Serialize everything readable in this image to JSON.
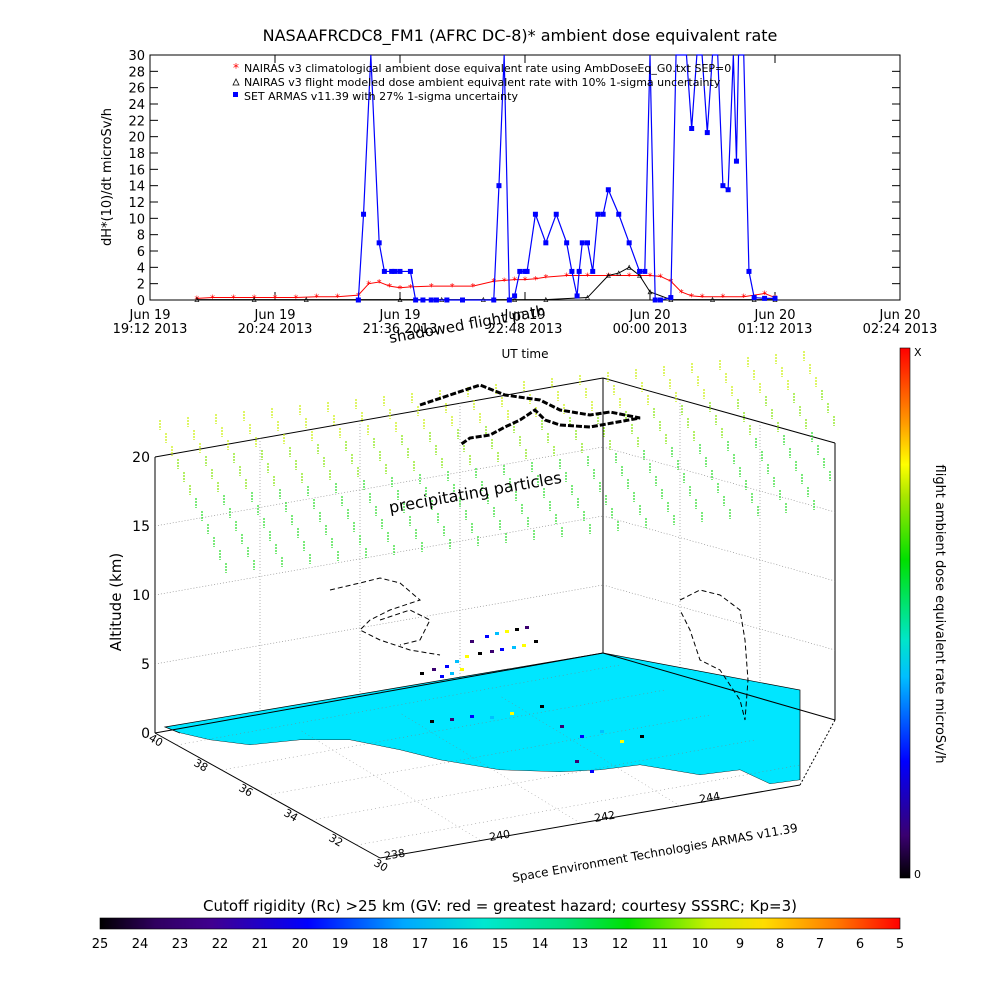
{
  "page": {
    "title": "NASAAFRCDC8_FM1 (AFRC DC-8)* ambient dose equivalent rate",
    "colorbar_title": "flight ambient dose equivalent rate microSv/h",
    "colorbar_top": "X",
    "colorbar_bottom": "0",
    "rigidity_title": "Cutoff rigidity (Rc) >25 km (GV: red = greatest hazard; courtesy SSSRC; Kp=3)",
    "rigidity_ticks": [
      "25",
      "24",
      "23",
      "22",
      "21",
      "20",
      "19",
      "18",
      "17",
      "16",
      "15",
      "14",
      "13",
      "12",
      "11",
      "10",
      "9",
      "8",
      "7",
      "6",
      "5"
    ],
    "map3d": {
      "altitude_label": "Altitude (km)",
      "altitude_ticks": [
        "0",
        "5",
        "10",
        "15",
        "20"
      ],
      "lat_ticks": [
        "40",
        "38",
        "36",
        "34",
        "32",
        "30"
      ],
      "lon_ticks": [
        "238",
        "240",
        "242",
        "244"
      ],
      "precip_label": "precipitating particles",
      "shadow_label": "shadowed flight path",
      "credit": "Space Environment Technologies ARMAS v11.39"
    },
    "colors": {
      "nairas_clim": "#ff0000",
      "armas": "#0000ff",
      "ocean": "#00e6ff",
      "precip_top": "#ffff00",
      "precip_bottom": "#00ff00"
    }
  },
  "chart_data": {
    "type": "line",
    "title": "NASAAFRCDC8_FM1 (AFRC DC-8)* ambient dose equivalent rate",
    "xlabel": "UT time",
    "ylabel": "dH*(10)/dt microSv/h",
    "ylim": [
      0,
      30
    ],
    "yticks": [
      0,
      2,
      4,
      6,
      8,
      10,
      12,
      14,
      16,
      18,
      20,
      22,
      24,
      26,
      28,
      30
    ],
    "xlim": [
      0,
      7.2
    ],
    "xticks": [
      {
        "x": 0.0,
        "line1": "Jun 19",
        "line2": "19:12 2013"
      },
      {
        "x": 1.2,
        "line1": "Jun 19",
        "line2": "20:24 2013"
      },
      {
        "x": 2.4,
        "line1": "Jun 19",
        "line2": "21:36 2013"
      },
      {
        "x": 3.6,
        "line1": "Jun 19",
        "line2": "22:48 2013"
      },
      {
        "x": 4.8,
        "line1": "Jun 20",
        "line2": "00:00 2013"
      },
      {
        "x": 6.0,
        "line1": "Jun 20",
        "line2": "01:12 2013"
      },
      {
        "x": 7.2,
        "line1": "Jun 20",
        "line2": "02:24 2013"
      }
    ],
    "x_unit_note": "hours after Jun 19 19:12 UT",
    "legend": "top-left",
    "series": [
      {
        "name": "NAIRAS v3 climatological ambient dose equivalent rate using AmbDoseEq_G0.txt SEP=0",
        "color": "#ff0000",
        "marker": "star",
        "x": [
          0.45,
          0.6,
          0.8,
          1.0,
          1.2,
          1.4,
          1.6,
          1.8,
          2.0,
          2.1,
          2.2,
          2.3,
          2.4,
          2.5,
          2.7,
          2.9,
          3.1,
          3.3,
          3.4,
          3.5,
          3.6,
          3.7,
          3.8,
          4.0,
          4.2,
          4.4,
          4.6,
          4.8,
          4.9,
          5.0,
          5.1,
          5.2,
          5.3,
          5.5,
          5.7,
          5.9,
          6.0
        ],
        "y": [
          0.2,
          0.3,
          0.3,
          0.3,
          0.3,
          0.3,
          0.4,
          0.4,
          0.6,
          2.0,
          2.2,
          1.7,
          1.5,
          1.6,
          1.7,
          1.7,
          1.7,
          2.3,
          2.4,
          2.5,
          2.5,
          2.6,
          2.8,
          3.0,
          3.0,
          3.0,
          3.0,
          3.0,
          2.9,
          2.3,
          1.0,
          0.5,
          0.4,
          0.4,
          0.4,
          0.8,
          0.3
        ]
      },
      {
        "name": "NAIRAS v3 flight modeled dose ambient equivalent rate with 10% 1-sigma uncertainty",
        "color": "#000000",
        "marker": "triangle",
        "x": [
          0.45,
          1.0,
          1.5,
          2.0,
          2.4,
          2.8,
          3.2,
          3.5,
          3.8,
          4.2,
          4.4,
          4.5,
          4.6,
          4.7,
          4.8,
          5.0,
          5.4,
          5.8,
          6.0
        ],
        "y": [
          0.05,
          0.05,
          0.05,
          0.05,
          0.05,
          0.05,
          0.05,
          0.05,
          0.05,
          0.3,
          3.0,
          3.3,
          4.0,
          3.0,
          1.0,
          0.05,
          0.05,
          0.05,
          0.05
        ]
      },
      {
        "name": "SET ARMAS v11.39 with 27% 1-sigma uncertainty",
        "color": "#0000ff",
        "marker": "square",
        "x": [
          2.0,
          2.05,
          2.12,
          2.2,
          2.25,
          2.32,
          2.35,
          2.4,
          2.5,
          2.55,
          2.62,
          2.7,
          2.75,
          2.85,
          3.0,
          3.3,
          3.35,
          3.4,
          3.45,
          3.5,
          3.55,
          3.6,
          3.62,
          3.7,
          3.8,
          3.9,
          4.0,
          4.05,
          4.1,
          4.12,
          4.15,
          4.2,
          4.25,
          4.3,
          4.35,
          4.4,
          4.5,
          4.6,
          4.7,
          4.75,
          4.8,
          4.85,
          4.9,
          5.0,
          5.05,
          5.1,
          5.15,
          5.2,
          5.25,
          5.3,
          5.35,
          5.4,
          5.45,
          5.5,
          5.55,
          5.6,
          5.63,
          5.65,
          5.7,
          5.75,
          5.8,
          5.9,
          6.0
        ],
        "y": [
          0,
          10.5,
          30,
          7,
          3.5,
          3.5,
          3.5,
          3.5,
          3.5,
          0,
          0,
          0,
          0,
          0,
          0,
          0,
          14,
          30,
          0,
          0.5,
          3.5,
          3.5,
          3.5,
          10.5,
          7,
          10.5,
          7,
          3.5,
          0.5,
          3.5,
          7,
          7,
          3.5,
          10.5,
          10.5,
          13.5,
          10.5,
          7,
          3.5,
          3.5,
          30,
          0,
          0,
          0.3,
          30,
          30,
          30,
          21,
          30,
          30,
          20.5,
          30,
          30,
          14,
          13.5,
          30,
          17,
          30,
          30,
          3.5,
          0.3,
          0.2,
          0.2
        ]
      }
    ]
  }
}
